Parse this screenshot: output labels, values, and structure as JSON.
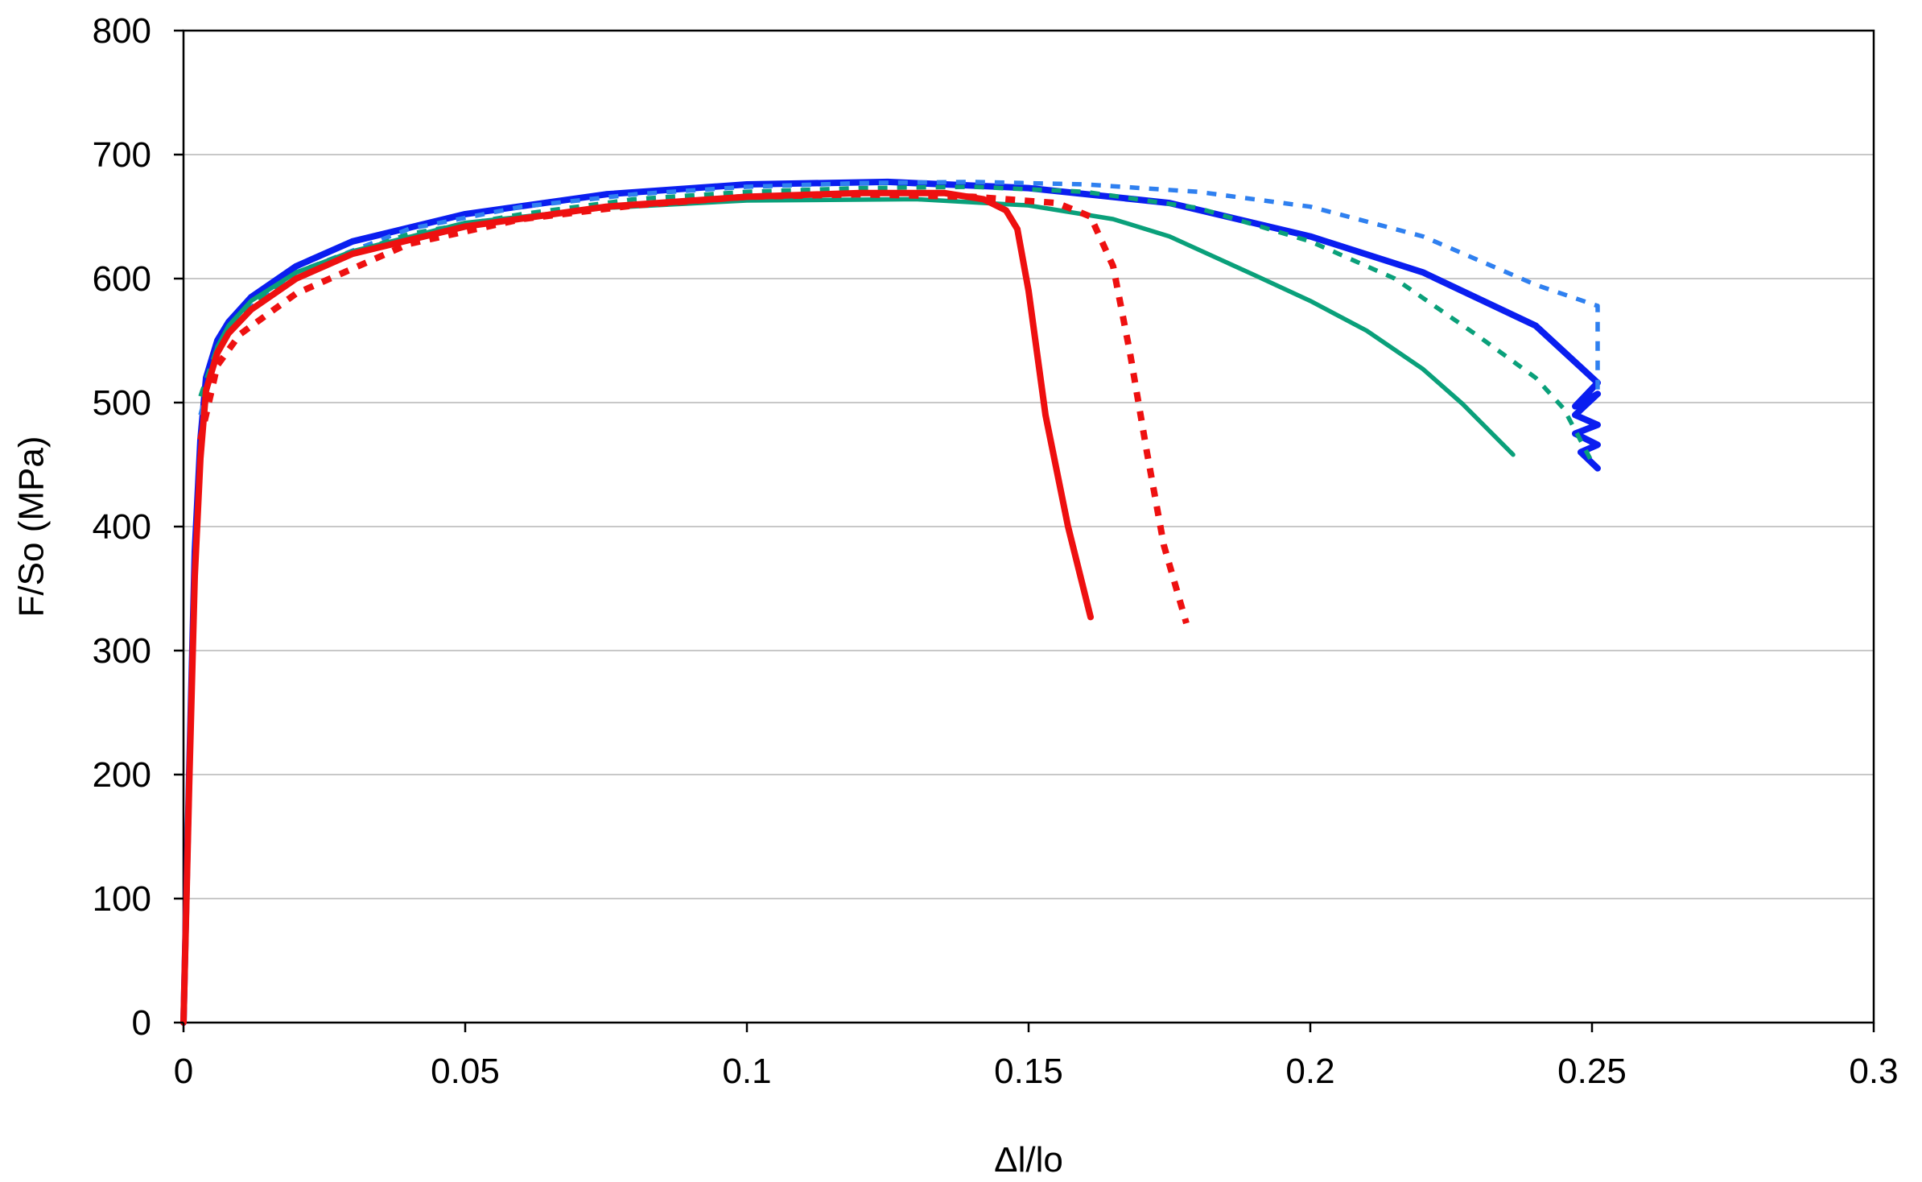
{
  "chart_data": {
    "type": "line",
    "title": "",
    "xlabel": "Δl/lo",
    "ylabel": "F/So (MPa)",
    "xlim": [
      0,
      0.3
    ],
    "ylim": [
      0,
      800
    ],
    "x_ticks": [
      0,
      0.05,
      0.1,
      0.15,
      0.2,
      0.25,
      0.3
    ],
    "x_tick_labels": [
      "0",
      "0.05",
      "0.1",
      "0.15",
      "0.2",
      "0.25",
      "0.3"
    ],
    "y_ticks": [
      0,
      100,
      200,
      300,
      400,
      500,
      600,
      700,
      800
    ],
    "y_tick_labels": [
      "0",
      "100",
      "200",
      "300",
      "400",
      "500",
      "600",
      "700",
      "800"
    ],
    "grid": "horizontal",
    "legend": "none",
    "series": [
      {
        "color": "#0a1ef0",
        "style": "solid",
        "weight": "thick",
        "x": [
          0,
          0.001,
          0.002,
          0.003,
          0.004,
          0.006,
          0.008,
          0.012,
          0.02,
          0.03,
          0.05,
          0.075,
          0.1,
          0.125,
          0.15,
          0.175,
          0.2,
          0.22,
          0.24,
          0.251,
          0.247,
          0.251,
          0.247,
          0.251,
          0.247,
          0.251,
          0.248,
          0.251
        ],
        "y": [
          0,
          200,
          380,
          470,
          520,
          550,
          565,
          585,
          610,
          630,
          652,
          668,
          676,
          678,
          673,
          661,
          634,
          605,
          562,
          516,
          497,
          507,
          490,
          482,
          475,
          466,
          460,
          447
        ]
      },
      {
        "color": "#2f80f0",
        "style": "dotted",
        "weight": "normal",
        "x": [
          0.003,
          0.006,
          0.01,
          0.02,
          0.04,
          0.06,
          0.08,
          0.1,
          0.12,
          0.14,
          0.16,
          0.18,
          0.2,
          0.22,
          0.24,
          0.251,
          0.251
        ],
        "y": [
          490,
          540,
          570,
          605,
          640,
          658,
          668,
          674,
          677,
          678,
          676,
          670,
          658,
          634,
          595,
          578,
          510
        ]
      },
      {
        "color": "#0aa07a",
        "style": "solid",
        "weight": "normal",
        "x": [
          0,
          0.001,
          0.002,
          0.003,
          0.004,
          0.006,
          0.008,
          0.012,
          0.02,
          0.03,
          0.05,
          0.075,
          0.1,
          0.13,
          0.15,
          0.165,
          0.175,
          0.19,
          0.2,
          0.21,
          0.22,
          0.227,
          0.236
        ],
        "y": [
          0,
          190,
          370,
          460,
          510,
          545,
          562,
          582,
          605,
          622,
          645,
          657,
          663,
          664,
          659,
          648,
          634,
          603,
          582,
          558,
          527,
          499,
          458
        ]
      },
      {
        "color": "#0aa07a",
        "style": "dotted",
        "weight": "normal",
        "x": [
          0.003,
          0.006,
          0.01,
          0.02,
          0.04,
          0.06,
          0.08,
          0.1,
          0.12,
          0.14,
          0.16,
          0.18,
          0.2,
          0.215,
          0.23,
          0.24,
          0.245,
          0.25
        ],
        "y": [
          505,
          545,
          572,
          605,
          636,
          652,
          664,
          670,
          673,
          674,
          670,
          657,
          630,
          600,
          553,
          520,
          495,
          452
        ]
      },
      {
        "color": "#ee1010",
        "style": "solid",
        "weight": "thick",
        "x": [
          0,
          0.001,
          0.002,
          0.003,
          0.004,
          0.006,
          0.008,
          0.012,
          0.02,
          0.03,
          0.05,
          0.075,
          0.1,
          0.12,
          0.135,
          0.142,
          0.146,
          0.148,
          0.15,
          0.153,
          0.157,
          0.161
        ],
        "y": [
          0,
          190,
          360,
          455,
          510,
          540,
          556,
          575,
          600,
          620,
          642,
          658,
          666,
          669,
          669,
          664,
          655,
          640,
          590,
          490,
          400,
          327
        ]
      },
      {
        "color": "#ee1010",
        "style": "dotted",
        "weight": "thick",
        "x": [
          0.003,
          0.006,
          0.01,
          0.02,
          0.04,
          0.06,
          0.08,
          0.1,
          0.12,
          0.14,
          0.155,
          0.161,
          0.165,
          0.168,
          0.171,
          0.174,
          0.178
        ],
        "y": [
          470,
          530,
          555,
          588,
          628,
          648,
          659,
          666,
          668,
          666,
          661,
          650,
          610,
          540,
          460,
          385,
          322
        ]
      }
    ]
  }
}
